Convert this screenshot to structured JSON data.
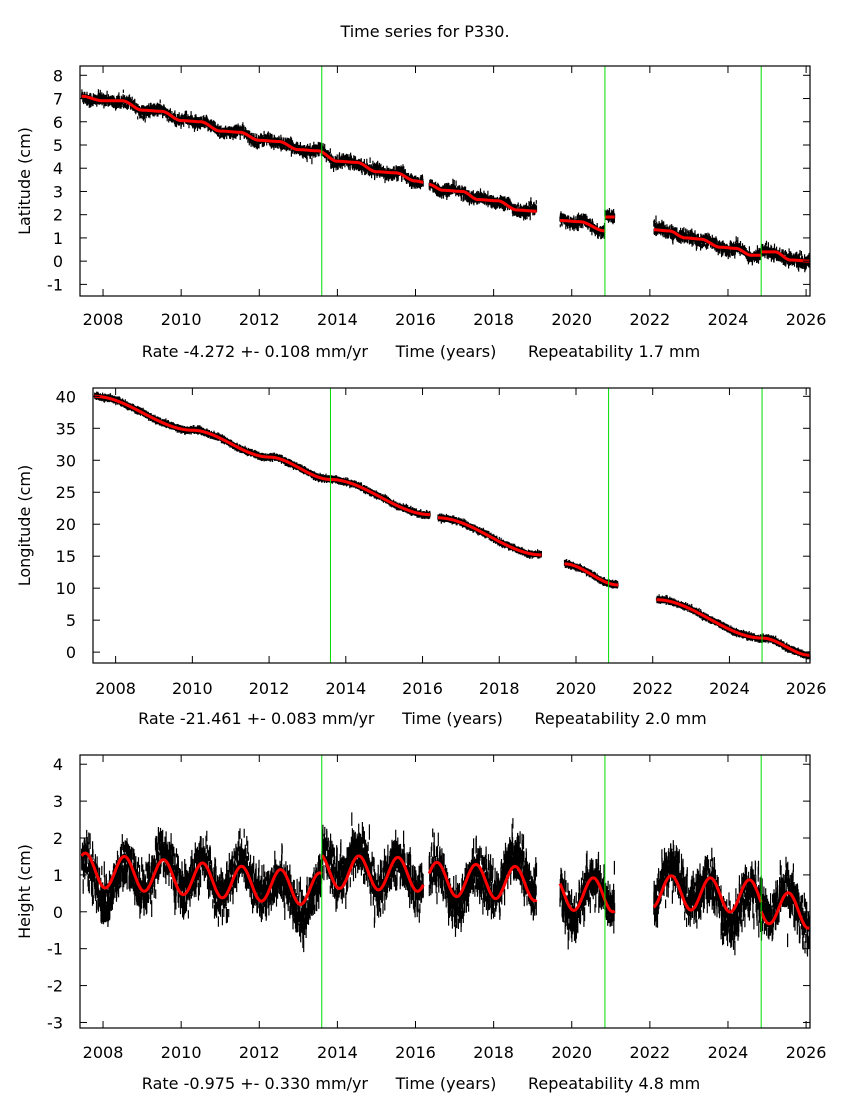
{
  "title": "Time series for P330.",
  "colors": {
    "data": "#000000",
    "model": "#ff0000",
    "event_line": "#00dd00",
    "frame": "#000000"
  },
  "chart_data": [
    {
      "type": "scatter",
      "panel": "latitude",
      "ylabel": "Latitude (cm)",
      "xlabel": "Time (years)",
      "rate_text": "Rate -4.272 +- 0.108 mm/yr",
      "repeatability_text": "Repeatability 1.7 mm",
      "xlim": [
        2007.41,
        2026.1
      ],
      "ylim": [
        -1.5,
        8.4
      ],
      "xticks": [
        2008,
        2010,
        2012,
        2014,
        2016,
        2018,
        2020,
        2022,
        2024,
        2026
      ],
      "yticks": [
        -1,
        0,
        1,
        2,
        3,
        4,
        5,
        6,
        7,
        8
      ],
      "event_lines": [
        2013.6,
        2020.85,
        2024.85
      ],
      "segments": [
        {
          "start": 2007.45,
          "end": 2016.2,
          "fit": [
            [
              2007.45,
              7.1
            ],
            [
              2008.0,
              6.9
            ],
            [
              2008.5,
              6.9
            ],
            [
              2009.0,
              6.5
            ],
            [
              2009.5,
              6.45
            ],
            [
              2010.0,
              6.05
            ],
            [
              2010.5,
              6.0
            ],
            [
              2011.0,
              5.6
            ],
            [
              2011.5,
              5.55
            ],
            [
              2012.0,
              5.2
            ],
            [
              2012.5,
              5.15
            ],
            [
              2013.0,
              4.8
            ],
            [
              2013.5,
              4.75
            ],
            [
              2014.0,
              4.3
            ],
            [
              2014.5,
              4.25
            ],
            [
              2015.0,
              3.85
            ],
            [
              2015.5,
              3.8
            ],
            [
              2016.0,
              3.45
            ],
            [
              2016.2,
              3.4
            ]
          ],
          "noise": 0.22
        },
        {
          "start": 2016.35,
          "end": 2019.1,
          "fit": [
            [
              2016.35,
              3.3
            ],
            [
              2016.7,
              3.05
            ],
            [
              2017.2,
              3.0
            ],
            [
              2017.6,
              2.65
            ],
            [
              2018.1,
              2.6
            ],
            [
              2018.6,
              2.2
            ],
            [
              2019.1,
              2.15
            ]
          ],
          "noise": 0.22
        },
        {
          "start": 2019.7,
          "end": 2020.85,
          "fit": [
            [
              2019.7,
              1.75
            ],
            [
              2020.2,
              1.7
            ],
            [
              2020.85,
              1.3
            ]
          ],
          "noise": 0.22
        },
        {
          "start": 2020.85,
          "end": 2021.1,
          "fit": [
            [
              2020.85,
              1.9
            ],
            [
              2021.1,
              1.9
            ]
          ],
          "noise": 0.2
        },
        {
          "start": 2022.1,
          "end": 2024.85,
          "fit": [
            [
              2022.1,
              1.35
            ],
            [
              2022.5,
              1.3
            ],
            [
              2022.9,
              1.0
            ],
            [
              2023.3,
              0.95
            ],
            [
              2023.8,
              0.6
            ],
            [
              2024.2,
              0.55
            ],
            [
              2024.6,
              0.25
            ],
            [
              2024.85,
              0.25
            ]
          ],
          "noise": 0.25
        },
        {
          "start": 2024.85,
          "end": 2026.1,
          "fit": [
            [
              2024.85,
              0.4
            ],
            [
              2025.2,
              0.4
            ],
            [
              2025.6,
              0.05
            ],
            [
              2026.1,
              0.0
            ]
          ],
          "noise": 0.25
        }
      ]
    },
    {
      "type": "scatter",
      "panel": "longitude",
      "ylabel": "Longitude (cm)",
      "xlabel": "Time (years)",
      "rate_text": "Rate -21.461 +- 0.083 mm/yr",
      "repeatability_text": "Repeatability 2.0 mm",
      "xlim": [
        2007.41,
        2026.1
      ],
      "ylim": [
        -1.7,
        41.3
      ],
      "xticks": [
        2008,
        2010,
        2012,
        2014,
        2016,
        2018,
        2020,
        2022,
        2024,
        2026
      ],
      "yticks": [
        0,
        5,
        10,
        15,
        20,
        25,
        30,
        35,
        40
      ],
      "event_lines": [
        2013.6,
        2020.85,
        2024.85
      ],
      "segments": [
        {
          "start": 2007.45,
          "end": 2016.2,
          "fit": [
            [
              2007.45,
              40.0
            ],
            [
              2010.0,
              34.7
            ],
            [
              2012.0,
              30.5
            ],
            [
              2013.6,
              27.0
            ],
            [
              2016.2,
              21.5
            ]
          ],
          "noise": 0.25
        },
        {
          "start": 2016.4,
          "end": 2019.1,
          "fit": [
            [
              2016.4,
              21.0
            ],
            [
              2019.1,
              15.2
            ]
          ],
          "noise": 0.25
        },
        {
          "start": 2019.7,
          "end": 2021.1,
          "fit": [
            [
              2019.7,
              13.8
            ],
            [
              2021.1,
              10.5
            ]
          ],
          "noise": 0.25
        },
        {
          "start": 2022.1,
          "end": 2026.1,
          "fit": [
            [
              2022.1,
              8.2
            ],
            [
              2024.85,
              2.2
            ],
            [
              2026.1,
              -0.5
            ]
          ],
          "noise": 0.25
        }
      ]
    },
    {
      "type": "scatter",
      "panel": "height",
      "ylabel": "Height (cm)",
      "xlabel": "Time (years)",
      "rate_text": "Rate -0.975 +- 0.330 mm/yr",
      "repeatability_text": "Repeatability 4.8 mm",
      "xlim": [
        2007.41,
        2026.1
      ],
      "ylim": [
        -3.15,
        4.25
      ],
      "xticks": [
        2008,
        2010,
        2012,
        2014,
        2016,
        2018,
        2020,
        2022,
        2024,
        2026
      ],
      "yticks": [
        -3,
        -2,
        -1,
        0,
        1,
        2,
        3,
        4
      ],
      "event_lines": [
        2013.6,
        2020.85,
        2024.85
      ],
      "seasonal": {
        "amplitude_cm": 0.45,
        "period_years": 1.0,
        "phase_peak_year_fraction": 0.55
      },
      "segments": [
        {
          "start": 2007.45,
          "end": 2013.6,
          "offset_start": 1.15,
          "offset_end": 0.6,
          "noise": 0.6
        },
        {
          "start": 2013.6,
          "end": 2016.2,
          "offset_start": 1.1,
          "offset_end": 1.0,
          "noise": 0.6
        },
        {
          "start": 2016.35,
          "end": 2019.1,
          "offset_start": 0.9,
          "offset_end": 0.75,
          "noise": 0.6
        },
        {
          "start": 2019.7,
          "end": 2021.1,
          "offset_start": 0.5,
          "offset_end": 0.45,
          "noise": 0.55
        },
        {
          "start": 2022.1,
          "end": 2024.85,
          "offset_start": 0.55,
          "offset_end": 0.4,
          "noise": 0.6
        },
        {
          "start": 2024.85,
          "end": 2026.1,
          "offset_start": 0.15,
          "offset_end": 0.0,
          "noise": 0.6
        }
      ]
    }
  ]
}
